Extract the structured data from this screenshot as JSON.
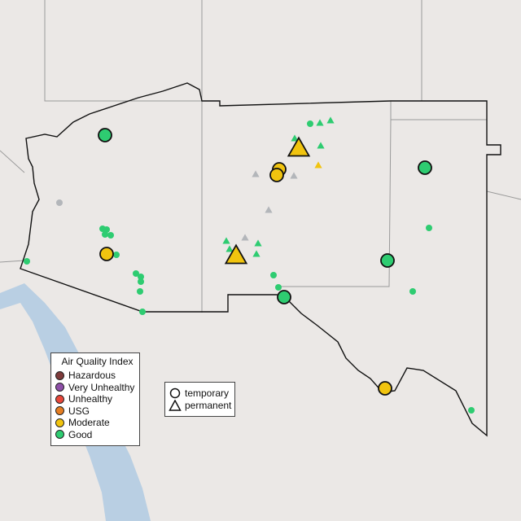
{
  "aqi_legend": {
    "title": "Air Quality Index",
    "items": [
      {
        "label": "Hazardous",
        "color": "#7e3b3b"
      },
      {
        "label": "Very Unhealthy",
        "color": "#8e4fa8"
      },
      {
        "label": "Unhealthy",
        "color": "#e8473a"
      },
      {
        "label": "USG",
        "color": "#e67e22"
      },
      {
        "label": "Moderate",
        "color": "#f1c40f"
      },
      {
        "label": "Good",
        "color": "#2ecc71"
      }
    ]
  },
  "type_legend": {
    "items": [
      {
        "label": "temporary",
        "icon": "circle-icon"
      },
      {
        "label": "permanent",
        "icon": "triangle-icon"
      }
    ]
  },
  "colors": {
    "no_data": "#b3b6ba",
    "water": "#b9cfe3",
    "land": "#ece9e7",
    "region_border": "#111111",
    "state_border": "#9a9a9a"
  }
}
